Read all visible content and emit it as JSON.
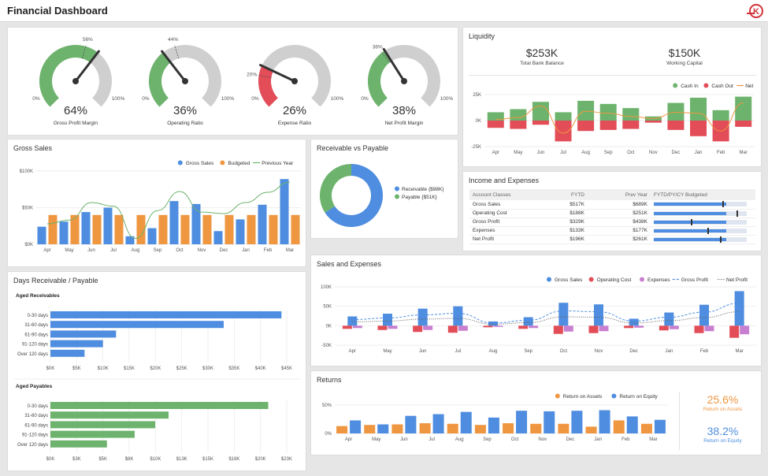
{
  "header": {
    "title": "Financial Dashboard"
  },
  "colors": {
    "blue": "#4e8ddf",
    "orange": "#ef9640",
    "green": "#6db36d",
    "red": "#e24d58",
    "purple": "#c97fd0",
    "grey": "#cfcfcf",
    "dark": "#333333"
  },
  "gauges": [
    {
      "value": "64%",
      "label": "Gross Profit Margin",
      "pct": 64,
      "target_label": "56%",
      "target": 56,
      "min": "0%",
      "max": "100%"
    },
    {
      "value": "36%",
      "label": "Operating Ratio",
      "pct": 36,
      "target_label": "44%",
      "target": 44,
      "min": "0%",
      "max": "100%"
    },
    {
      "value": "26%",
      "label": "Expense Ratio",
      "pct": 26,
      "target_label": "20%",
      "target": 20,
      "min": "0%",
      "max": "100%"
    },
    {
      "value": "38%",
      "label": "Net Profit Margin",
      "pct": 38,
      "target_label": "36%",
      "target": 36,
      "min": "0%",
      "max": "100%"
    }
  ],
  "liquidity": {
    "title": "Liquidity",
    "kpis": [
      {
        "value": "$253K",
        "label": "Total Bank Balance"
      },
      {
        "value": "$150K",
        "label": "Working Capital"
      }
    ]
  },
  "income_expenses": {
    "title": "Income and Expenses",
    "headers": [
      "Account Classes",
      "FYTD",
      "Prev Year",
      "FYTD/PY/CY Budgeted"
    ],
    "rows": [
      {
        "name": "Gross Sales",
        "fytd": "$517K",
        "prev": "$689K",
        "fill": 0.78,
        "mark": 0.74
      },
      {
        "name": "Operating Cost",
        "fytd": "$188K",
        "prev": "$251K",
        "fill": 0.78,
        "mark": 0.89
      },
      {
        "name": "Gross Profit",
        "fytd": "$329K",
        "prev": "$438K",
        "fill": 0.78,
        "mark": 0.4
      },
      {
        "name": "Expenses",
        "fytd": "$133K",
        "prev": "$177K",
        "fill": 0.78,
        "mark": 0.58
      },
      {
        "name": "Net Profit",
        "fytd": "$196K",
        "prev": "$261K",
        "fill": 0.78,
        "mark": 0.71
      }
    ]
  },
  "returns_kpis": [
    {
      "value": "25.6%",
      "label": "Return on Assets",
      "color": "#ef9640"
    },
    {
      "value": "38.2%",
      "label": "Return on Equity",
      "color": "#4e8ddf"
    }
  ],
  "chart_data": [
    {
      "id": "gross_sales",
      "type": "bar",
      "title": "Gross Sales",
      "categories": [
        "Apr",
        "May",
        "Jun",
        "Jul",
        "Aug",
        "Sep",
        "Oct",
        "Nov",
        "Dec",
        "Jan",
        "Feb",
        "Mar"
      ],
      "series": [
        {
          "name": "Gross Sales",
          "type": "bar",
          "color": "#4e8ddf",
          "values": [
            24,
            31,
            44,
            50,
            11,
            22,
            59,
            55,
            18,
            34,
            54,
            89
          ]
        },
        {
          "name": "Budgeted",
          "type": "bar",
          "color": "#ef9640",
          "values": [
            40,
            40,
            40,
            40,
            40,
            40,
            40,
            40,
            40,
            40,
            40,
            40
          ]
        },
        {
          "name": "Previous Year",
          "type": "line",
          "color": "#6db36d",
          "values": [
            28,
            33,
            57,
            52,
            8,
            46,
            72,
            44,
            42,
            57,
            71,
            85
          ]
        }
      ],
      "yticks": [
        "$0K",
        "$50K",
        "$100K"
      ],
      "ylim": [
        0,
        100
      ],
      "legend": "top-right"
    },
    {
      "id": "liquidity",
      "type": "bar",
      "categories": [
        "Apr",
        "May",
        "Jun",
        "Jul",
        "Aug",
        "Sep",
        "Oct",
        "Nov",
        "Dec",
        "Jan",
        "Feb",
        "Mar"
      ],
      "series": [
        {
          "name": "Cash In",
          "type": "bar",
          "color": "#6db36d",
          "values": [
            8,
            11,
            18,
            8,
            19,
            16,
            12,
            4,
            17,
            22,
            10,
            23
          ]
        },
        {
          "name": "Cash Out",
          "type": "bar",
          "color": "#e24d58",
          "values": [
            -7,
            -8,
            -4,
            -20,
            -10,
            -9,
            -8,
            -2,
            -9,
            -15,
            -20,
            -6
          ]
        },
        {
          "name": "Net",
          "type": "line",
          "color": "#ef9640",
          "values": [
            1,
            3,
            14,
            -12,
            9,
            7,
            4,
            2,
            8,
            7,
            -10,
            17
          ]
        }
      ],
      "yticks": [
        "-25K",
        "0K",
        "25K"
      ],
      "ylim": [
        -25,
        25
      ],
      "legend": "top-right"
    },
    {
      "id": "receivable_payable",
      "type": "pie",
      "title": "Receivable vs Payable",
      "slices": [
        {
          "label": "Receivable {$98K}",
          "value": 98,
          "color": "#4e8ddf"
        },
        {
          "label": "Payable {$51K}",
          "value": 51,
          "color": "#6db36d"
        }
      ],
      "legend": "right"
    },
    {
      "id": "aged_receivables",
      "type": "bar",
      "orientation": "horizontal",
      "title": "Days Receivable / Payable",
      "subtitle": "Aged Receivables",
      "categories": [
        "0-30 days",
        "31-60 days",
        "61-90 days",
        "91-120 days",
        "Over 120 days"
      ],
      "values": [
        44,
        33,
        12.5,
        10,
        6.5
      ],
      "color": "#4e8ddf",
      "xticks": [
        "$0K",
        "$5K",
        "$10K",
        "$15K",
        "$20K",
        "$25K",
        "$30K",
        "$35K",
        "$40K",
        "$45K"
      ],
      "xlim": [
        0,
        45
      ]
    },
    {
      "id": "aged_payables",
      "type": "bar",
      "orientation": "horizontal",
      "subtitle": "Aged Payables",
      "categories": [
        "0-30 days",
        "31-60 days",
        "61-90 days",
        "91-120 days",
        "Over 120 days"
      ],
      "values": [
        21.2,
        11.5,
        10.2,
        8.2,
        5.5
      ],
      "color": "#6db36d",
      "xticks": [
        "$0K",
        "$3K",
        "$5K",
        "$8K",
        "$10K",
        "$13K",
        "$15K",
        "$18K",
        "$20K",
        "$23K"
      ],
      "xlim": [
        0,
        23
      ]
    },
    {
      "id": "sales_expenses",
      "type": "bar",
      "title": "Sales and Expenses",
      "categories": [
        "Apr",
        "May",
        "Jun",
        "Jul",
        "Aug",
        "Sep",
        "Oct",
        "Nov",
        "Dec",
        "Jan",
        "Feb",
        "Mar"
      ],
      "series": [
        {
          "name": "Gross Sales",
          "type": "bar",
          "color": "#4e8ddf",
          "values": [
            24,
            31,
            44,
            50,
            11,
            22,
            59,
            55,
            18,
            34,
            54,
            89
          ]
        },
        {
          "name": "Operating Cost",
          "type": "bar",
          "color": "#e24d58",
          "values": [
            -8,
            -11,
            -16,
            -18,
            -4,
            -8,
            -21,
            -19,
            -6,
            -12,
            -19,
            -31
          ]
        },
        {
          "name": "Expenses",
          "type": "bar",
          "color": "#c97fd0",
          "values": [
            -6,
            -8,
            -11,
            -13,
            -3,
            -6,
            -15,
            -14,
            -5,
            -9,
            -14,
            -22
          ]
        },
        {
          "name": "Gross Profit",
          "type": "dashed",
          "color": "#4e8ddf",
          "values": [
            16,
            20,
            28,
            32,
            7,
            14,
            38,
            36,
            12,
            22,
            35,
            58
          ]
        },
        {
          "name": "Net Profit",
          "type": "dotted",
          "color": "#666666",
          "values": [
            10,
            12,
            17,
            19,
            4,
            8,
            23,
            22,
            7,
            13,
            21,
            36
          ]
        }
      ],
      "yticks": [
        "-50K",
        "0K",
        "50K",
        "100K"
      ],
      "ylim": [
        -50,
        100
      ],
      "legend": "top-right"
    },
    {
      "id": "returns",
      "type": "bar",
      "title": "Returns",
      "categories": [
        "Apr",
        "May",
        "Jun",
        "Jul",
        "Aug",
        "Sep",
        "Oct",
        "Nov",
        "Dec",
        "Jan",
        "Feb",
        "Mar"
      ],
      "series": [
        {
          "name": "Return on Assets",
          "type": "bar",
          "color": "#ef9640",
          "values": [
            13,
            15,
            16,
            18,
            17,
            15,
            18,
            17,
            17,
            12,
            23,
            17
          ]
        },
        {
          "name": "Return on Equity",
          "type": "bar",
          "color": "#4e8ddf",
          "values": [
            23,
            16,
            31,
            34,
            38,
            28,
            40,
            39,
            40,
            41,
            30,
            24
          ]
        }
      ],
      "yticks": [
        "0%",
        "50%"
      ],
      "ylim": [
        0,
        50
      ],
      "legend": "top-right"
    }
  ]
}
